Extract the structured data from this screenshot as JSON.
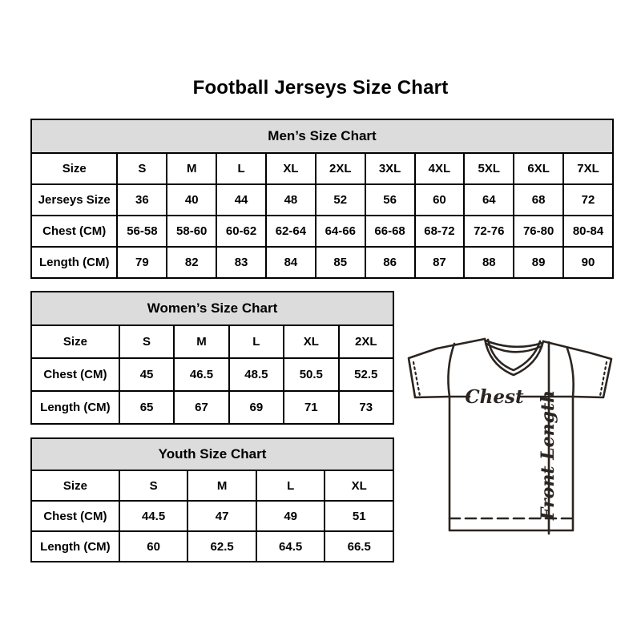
{
  "title": "Football Jerseys Size Chart",
  "colors": {
    "header_bg": "#dcdcdc",
    "table_border": "#000000",
    "text": "#000000",
    "diagram_line": "#2b241f"
  },
  "tables": {
    "men": {
      "title": "Men’s Size Chart",
      "label_col_pct": 14.8,
      "rows": [
        {
          "label": "Size",
          "values": [
            "S",
            "M",
            "L",
            "XL",
            "2XL",
            "3XL",
            "4XL",
            "5XL",
            "6XL",
            "7XL"
          ]
        },
        {
          "label": "Jerseys Size",
          "values": [
            "36",
            "40",
            "44",
            "48",
            "52",
            "56",
            "60",
            "64",
            "68",
            "72"
          ]
        },
        {
          "label": "Chest (CM)",
          "values": [
            "56-58",
            "58-60",
            "60-62",
            "62-64",
            "64-66",
            "66-68",
            "68-72",
            "72-76",
            "76-80",
            "80-84"
          ]
        },
        {
          "label": "Length (CM)",
          "values": [
            "79",
            "82",
            "83",
            "84",
            "85",
            "86",
            "87",
            "88",
            "89",
            "90"
          ]
        }
      ]
    },
    "women": {
      "title": "Women’s Size Chart",
      "label_col_pct": 24.3,
      "rows": [
        {
          "label": "Size",
          "values": [
            "S",
            "M",
            "L",
            "XL",
            "2XL"
          ]
        },
        {
          "label": "Chest (CM)",
          "values": [
            "45",
            "46.5",
            "48.5",
            "50.5",
            "52.5"
          ]
        },
        {
          "label": "Length (CM)",
          "values": [
            "65",
            "67",
            "69",
            "71",
            "73"
          ]
        }
      ]
    },
    "youth": {
      "title": "Youth Size Chart",
      "label_col_pct": 24.3,
      "rows": [
        {
          "label": "Size",
          "values": [
            "S",
            "M",
            "L",
            "XL"
          ]
        },
        {
          "label": "Chest (CM)",
          "values": [
            "44.5",
            "47",
            "49",
            "51"
          ]
        },
        {
          "label": "Length (CM)",
          "values": [
            "60",
            "62.5",
            "64.5",
            "66.5"
          ]
        }
      ]
    }
  },
  "diagram": {
    "chest_label": "Chest",
    "front_length_label": "Front Length"
  }
}
